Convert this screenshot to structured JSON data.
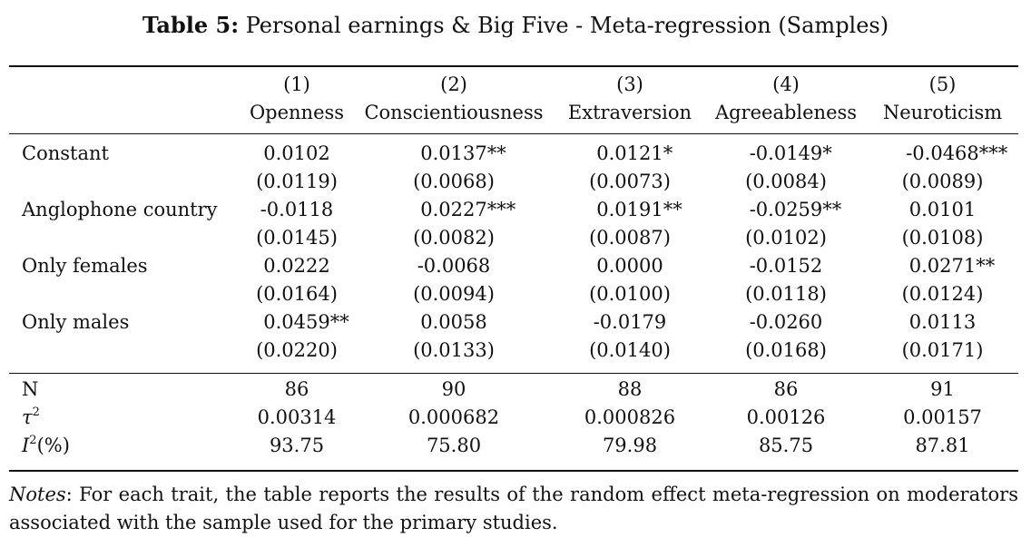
{
  "caption": {
    "label": "Table 5:",
    "text": "Personal earnings & Big Five - Meta-regression (Samples)"
  },
  "columns": [
    {
      "number": "(1)",
      "name": "Openness"
    },
    {
      "number": "(2)",
      "name": "Conscientiousness"
    },
    {
      "number": "(3)",
      "name": "Extraversion"
    },
    {
      "number": "(4)",
      "name": "Agreeableness"
    },
    {
      "number": "(5)",
      "name": "Neuroticism"
    }
  ],
  "rows": [
    {
      "label": "Constant",
      "coef": [
        {
          "v": "0.0102",
          "s": ""
        },
        {
          "v": "0.0137",
          "s": "**"
        },
        {
          "v": "0.0121",
          "s": "*"
        },
        {
          "v": "-0.0149",
          "s": "*"
        },
        {
          "v": "-0.0468",
          "s": "***"
        }
      ],
      "se": [
        "(0.0119)",
        "(0.0068)",
        "(0.0073)",
        "(0.0084)",
        "(0.0089)"
      ]
    },
    {
      "label": "Anglophone country",
      "coef": [
        {
          "v": "-0.0118",
          "s": ""
        },
        {
          "v": "0.0227",
          "s": "***"
        },
        {
          "v": "0.0191",
          "s": "**"
        },
        {
          "v": "-0.0259",
          "s": "**"
        },
        {
          "v": "0.0101",
          "s": ""
        }
      ],
      "se": [
        "(0.0145)",
        "(0.0082)",
        "(0.0087)",
        "(0.0102)",
        "(0.0108)"
      ]
    },
    {
      "label": "Only females",
      "coef": [
        {
          "v": "0.0222",
          "s": ""
        },
        {
          "v": "-0.0068",
          "s": ""
        },
        {
          "v": "0.0000",
          "s": ""
        },
        {
          "v": "-0.0152",
          "s": ""
        },
        {
          "v": "0.0271",
          "s": "**"
        }
      ],
      "se": [
        "(0.0164)",
        "(0.0094)",
        "(0.0100)",
        "(0.0118)",
        "(0.0124)"
      ]
    },
    {
      "label": "Only males",
      "coef": [
        {
          "v": "0.0459",
          "s": "**"
        },
        {
          "v": "0.0058",
          "s": ""
        },
        {
          "v": "-0.0179",
          "s": ""
        },
        {
          "v": "-0.0260",
          "s": ""
        },
        {
          "v": "0.0113",
          "s": ""
        }
      ],
      "se": [
        "(0.0220)",
        "(0.0133)",
        "(0.0140)",
        "(0.0168)",
        "(0.0171)"
      ]
    }
  ],
  "stats": [
    {
      "label": "N",
      "values": [
        "86",
        "90",
        "88",
        "86",
        "91"
      ]
    },
    {
      "label": "τ",
      "sup": "2",
      "values": [
        "0.00314",
        "0.000682",
        "0.000826",
        "0.00126",
        "0.00157"
      ]
    },
    {
      "label": "I",
      "sup": "2",
      "suffix": "(%)",
      "values": [
        "93.75",
        "75.80",
        "79.98",
        "85.75",
        "87.81"
      ]
    }
  ],
  "notes": {
    "label": "Notes",
    "text": ": For each trait, the table reports the results of the random effect meta-regression on moderators associated with the sample used for the primary studies."
  }
}
